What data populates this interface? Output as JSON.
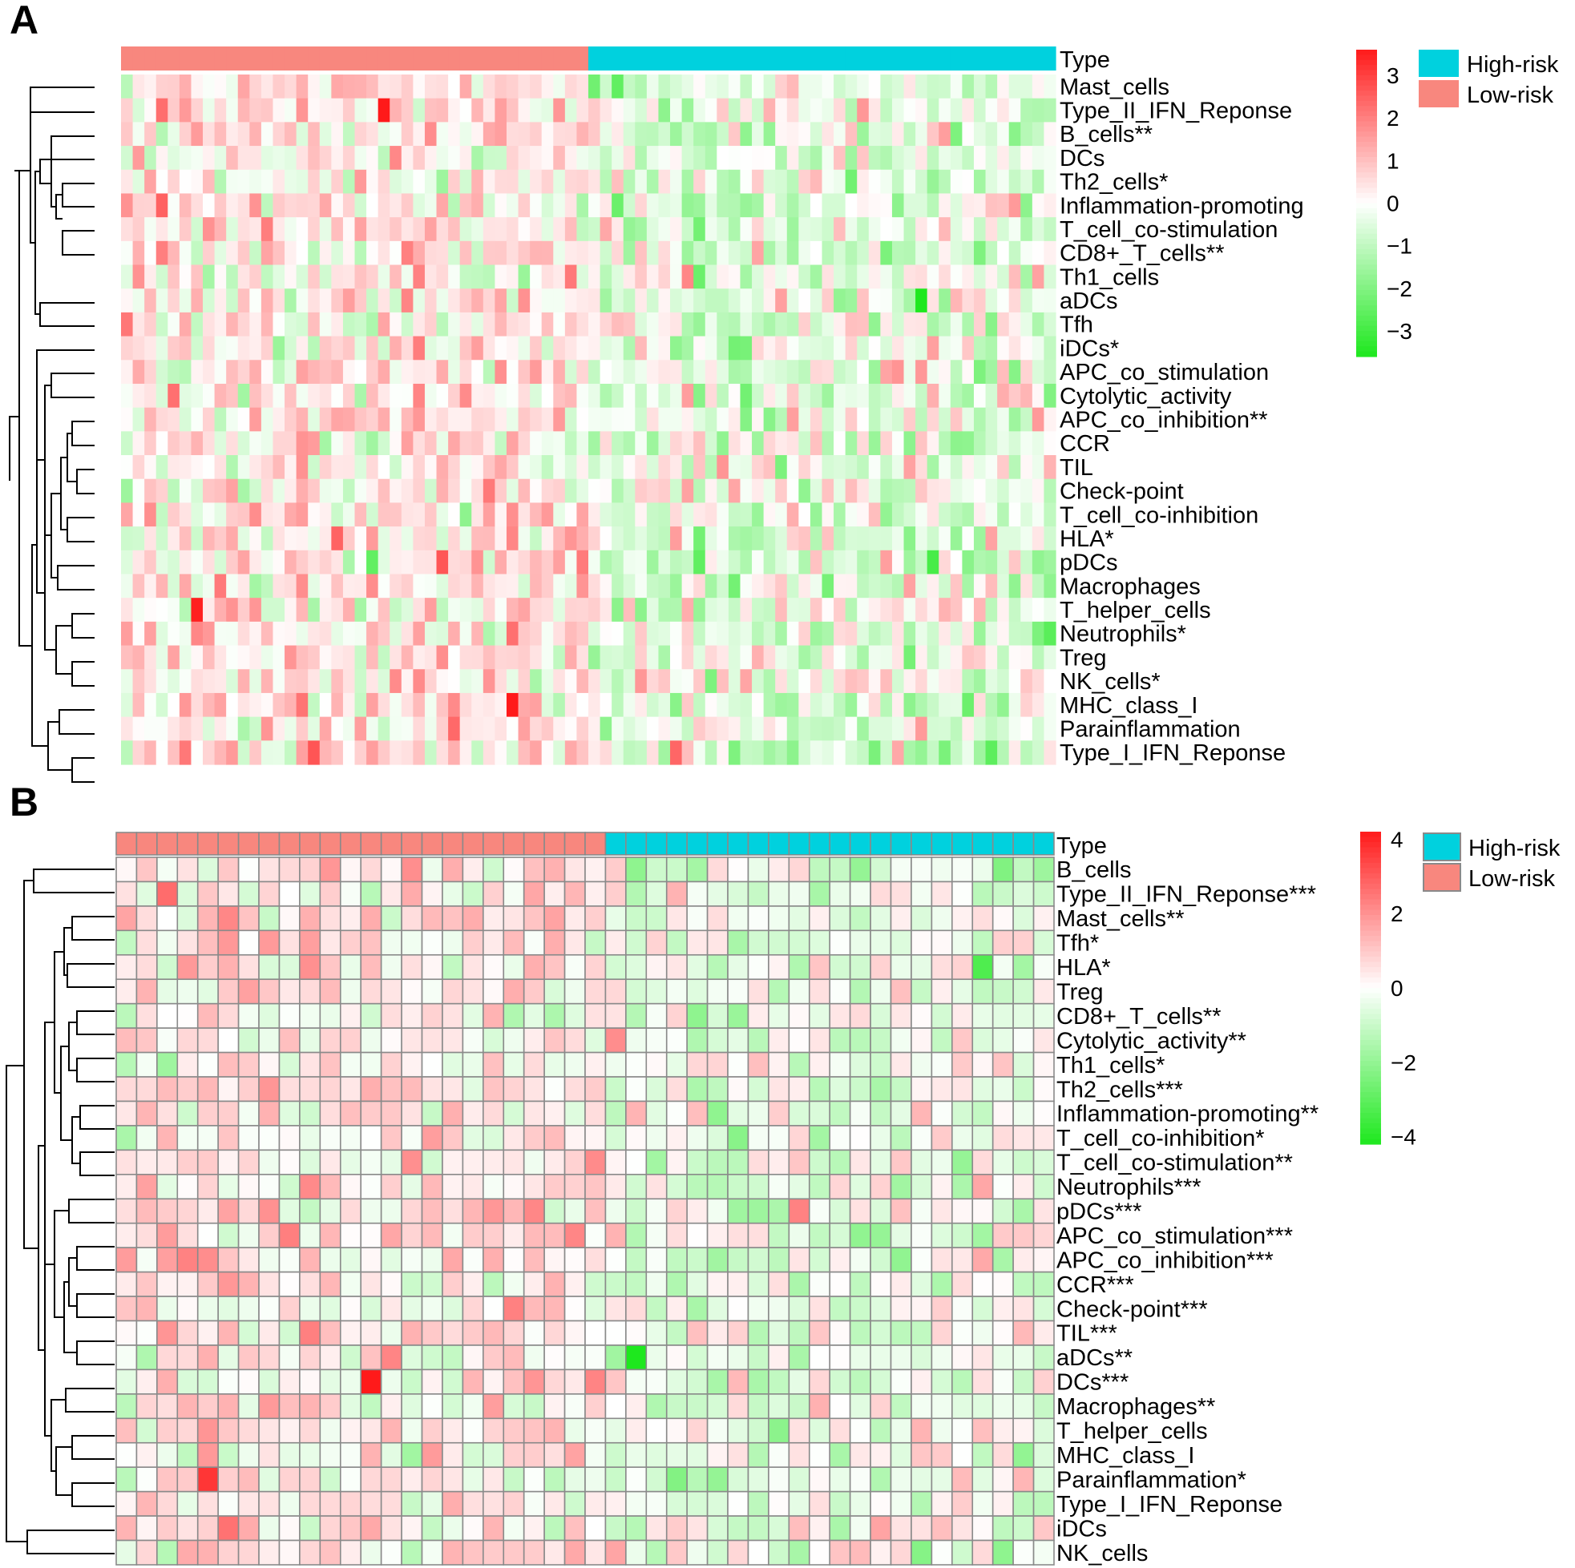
{
  "chart_data": [
    {
      "type": "heatmap",
      "panel_label": "A",
      "annotation_title": "Type",
      "legend": [
        {
          "label": "High-risk",
          "color": "#00D1DE"
        },
        {
          "label": "Low-risk",
          "color": "#F8877E"
        }
      ],
      "colorscale": {
        "low": "#1EE81E",
        "mid": "#FFFFFF",
        "high": "#FF1A1A",
        "range": [
          -3.6,
          3.6
        ],
        "ticks": [
          3,
          2,
          1,
          0,
          -1,
          -2,
          -3
        ]
      },
      "grid_lines": false,
      "n_columns": 80,
      "low_risk_columns": 40,
      "high_risk_columns": 40,
      "rows": [
        "Mast_cells",
        "Type_II_IFN_Reponse",
        "B_cells**",
        "DCs",
        "Th2_cells*",
        "Inflammation-promoting",
        "T_cell_co-stimulation",
        "CD8+_T_cells**",
        "Th1_cells",
        "aDCs",
        "Tfh",
        "iDCs*",
        "APC_co_stimulation",
        "Cytolytic_activity",
        "APC_co_inhibition**",
        "CCR",
        "TIL",
        "Check-point",
        "T_cell_co-inhibition",
        "HLA*",
        "pDCs",
        "Macrophages",
        "T_helper_cells",
        "Neutrophils*",
        "Treg",
        "NK_cells*",
        "MHC_class_I",
        "Parainflammation",
        "Type_I_IFN_Reponse"
      ]
    },
    {
      "type": "heatmap",
      "panel_label": "B",
      "annotation_title": "Type",
      "legend": [
        {
          "label": "High-risk",
          "color": "#00D1DE"
        },
        {
          "label": "Low-risk",
          "color": "#F8877E"
        }
      ],
      "colorscale": {
        "low": "#1EE81E",
        "mid": "#FFFFFF",
        "high": "#FF1A1A",
        "range": [
          -4.2,
          4.2
        ],
        "ticks": [
          4,
          2,
          0,
          -2,
          -4
        ]
      },
      "grid_lines": true,
      "n_columns": 46,
      "low_risk_columns": 24,
      "high_risk_columns": 22,
      "rows": [
        "B_cells",
        "Type_II_IFN_Reponse***",
        "Mast_cells**",
        "Tfh*",
        "HLA*",
        "Treg",
        "CD8+_T_cells**",
        "Cytolytic_activity**",
        "Th1_cells*",
        "Th2_cells***",
        "Inflammation-promoting**",
        "T_cell_co-inhibition*",
        "T_cell_co-stimulation**",
        "Neutrophils***",
        "pDCs***",
        "APC_co_stimulation***",
        "APC_co_inhibition***",
        "CCR***",
        "Check-point***",
        "TIL***",
        "aDCs**",
        "DCs***",
        "Macrophages**",
        "T_helper_cells",
        "MHC_class_I",
        "Parainflammation*",
        "Type_I_IFN_Reponse",
        "iDCs",
        "NK_cells"
      ]
    }
  ]
}
